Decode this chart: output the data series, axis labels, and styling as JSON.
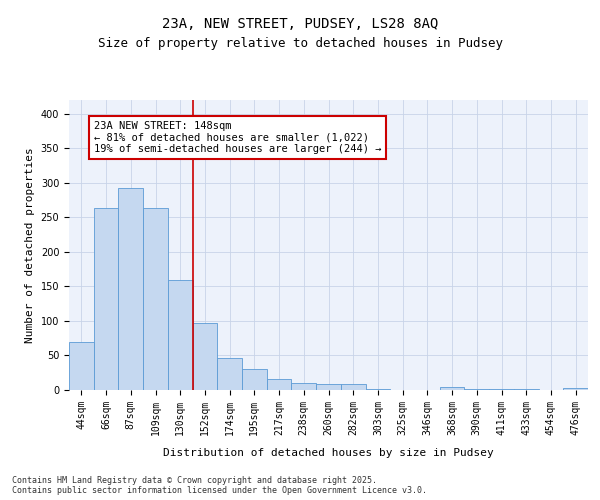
{
  "title1": "23A, NEW STREET, PUDSEY, LS28 8AQ",
  "title2": "Size of property relative to detached houses in Pudsey",
  "xlabel": "Distribution of detached houses by size in Pudsey",
  "ylabel": "Number of detached properties",
  "categories": [
    "44sqm",
    "66sqm",
    "87sqm",
    "109sqm",
    "130sqm",
    "152sqm",
    "174sqm",
    "195sqm",
    "217sqm",
    "238sqm",
    "260sqm",
    "282sqm",
    "303sqm",
    "325sqm",
    "346sqm",
    "368sqm",
    "390sqm",
    "411sqm",
    "433sqm",
    "454sqm",
    "476sqm"
  ],
  "values": [
    70,
    263,
    293,
    263,
    160,
    97,
    47,
    30,
    16,
    10,
    8,
    8,
    1,
    0,
    0,
    5,
    2,
    1,
    1,
    0,
    3
  ],
  "bar_color": "#c5d8f0",
  "bar_edge_color": "#5b9bd5",
  "grid_color": "#c8d4e8",
  "bg_color": "#edf2fb",
  "annotation_text": "23A NEW STREET: 148sqm\n← 81% of detached houses are smaller (1,022)\n19% of semi-detached houses are larger (244) →",
  "annotation_box_color": "#ffffff",
  "annotation_box_edge": "#cc0000",
  "vline_color": "#cc0000",
  "ylim": [
    0,
    420
  ],
  "yticks": [
    0,
    50,
    100,
    150,
    200,
    250,
    300,
    350,
    400
  ],
  "footnote": "Contains HM Land Registry data © Crown copyright and database right 2025.\nContains public sector information licensed under the Open Government Licence v3.0.",
  "title_fontsize": 10,
  "subtitle_fontsize": 9,
  "axis_label_fontsize": 8,
  "tick_fontsize": 7,
  "annot_fontsize": 7.5
}
